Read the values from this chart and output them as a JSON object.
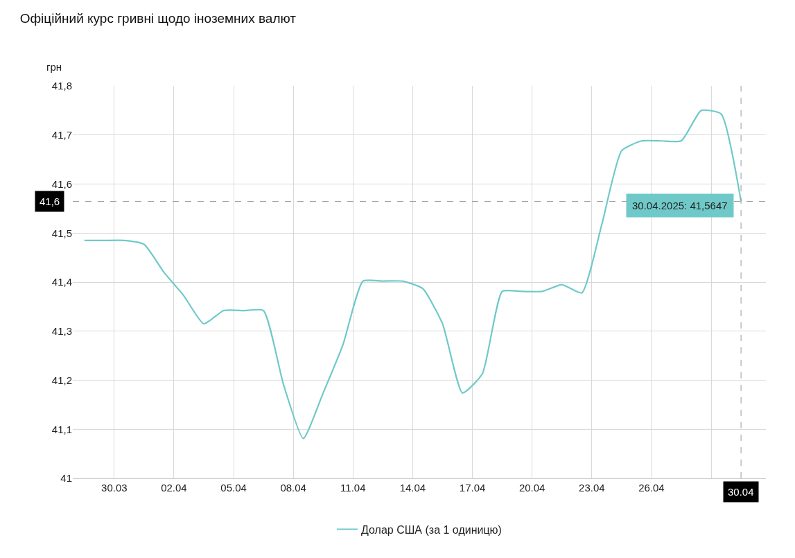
{
  "chart_data": {
    "type": "line",
    "title": "Офіційний курс гривні щодо іноземних валют",
    "ylabel": "грн",
    "x": [
      "2025-03-28",
      "2025-03-29",
      "2025-03-30",
      "2025-03-31",
      "2025-04-01",
      "2025-04-02",
      "2025-04-03",
      "2025-04-04",
      "2025-04-05",
      "2025-04-06",
      "2025-04-07",
      "2025-04-08",
      "2025-04-09",
      "2025-04-10",
      "2025-04-11",
      "2025-04-12",
      "2025-04-13",
      "2025-04-14",
      "2025-04-15",
      "2025-04-16",
      "2025-04-17",
      "2025-04-18",
      "2025-04-19",
      "2025-04-20",
      "2025-04-21",
      "2025-04-22",
      "2025-04-23",
      "2025-04-24",
      "2025-04-25",
      "2025-04-26",
      "2025-04-27",
      "2025-04-28",
      "2025-04-29",
      "2025-04-30"
    ],
    "series": [
      {
        "name": "Долар США (за 1 одиницю)",
        "color": "#70c9c9",
        "values": [
          41.485,
          41.485,
          41.485,
          41.477,
          41.42,
          41.372,
          41.315,
          41.342,
          41.342,
          41.342,
          41.192,
          41.081,
          41.174,
          41.273,
          41.402,
          41.402,
          41.402,
          41.387,
          41.315,
          41.174,
          41.213,
          41.381,
          41.381,
          41.381,
          41.395,
          41.378,
          41.517,
          41.668,
          41.688,
          41.688,
          41.688,
          41.75,
          41.743,
          41.5647
        ]
      }
    ],
    "xlim": [
      "2025-03-27T10:00",
      "2025-05-01T06:00"
    ],
    "xticks": [
      {
        "value": "2025-03-29T12:00",
        "label": "30.03"
      },
      {
        "value": "2025-04-01T12:00",
        "label": "02.04"
      },
      {
        "value": "2025-04-04T12:00",
        "label": "05.04"
      },
      {
        "value": "2025-04-07T12:00",
        "label": "08.04"
      },
      {
        "value": "2025-04-10T12:00",
        "label": "11.04"
      },
      {
        "value": "2025-04-13T12:00",
        "label": "14.04"
      },
      {
        "value": "2025-04-16T12:00",
        "label": "17.04"
      },
      {
        "value": "2025-04-19T12:00",
        "label": "20.04"
      },
      {
        "value": "2025-04-22T12:00",
        "label": "23.04"
      },
      {
        "value": "2025-04-25T12:00",
        "label": "26.04"
      },
      {
        "value": "2025-04-28T12:00",
        "label": null
      }
    ],
    "ylim": [
      41,
      41.8
    ],
    "yticks": [
      41,
      {
        "value": 41.1,
        "label": "41,1"
      },
      {
        "value": 41.2,
        "label": "41,2"
      },
      {
        "value": 41.3,
        "label": "41,3"
      },
      {
        "value": 41.4,
        "label": "41,4"
      },
      {
        "value": 41.5,
        "label": "41,5"
      },
      {
        "value": 41.6,
        "label": "41,6"
      },
      {
        "value": 41.7,
        "label": "41,7"
      },
      {
        "value": 41.8,
        "label": "41,8"
      }
    ],
    "ref_lines": [
      {
        "axis": "x",
        "value": "2025-04-30",
        "label": "30.04",
        "color": "#999999",
        "line_style": "dashed"
      },
      {
        "axis": "y",
        "value": 41.5647,
        "label": "41,6",
        "color": "#999999",
        "line_style": "dashed"
      }
    ],
    "annotations": [
      {
        "text": "30.04.2025: 41,5647",
        "x": "2025-04-30",
        "y": 41.5647
      }
    ],
    "grid": true,
    "legend": "bottom",
    "marker": "none",
    "line_style": "solid"
  }
}
